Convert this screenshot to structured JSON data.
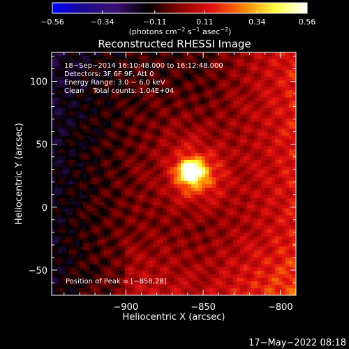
{
  "chart_data": {
    "type": "heatmap",
    "title": "Reconstructed RHESSI Image",
    "xlabel": "Heliocentric X (arcsec)",
    "ylabel": "Heliocentric Y (arcsec)",
    "xlim": [
      -948,
      -790
    ],
    "ylim": [
      -70,
      123
    ],
    "x_ticks": [
      -900,
      -850,
      -800
    ],
    "y_ticks": [
      -50,
      0,
      50,
      100
    ],
    "x_tick_labels": [
      "−900",
      "−850",
      "−800"
    ],
    "y_tick_labels": [
      "−50",
      "0",
      "50",
      "100"
    ],
    "grid": false,
    "colorbar": {
      "position": "top",
      "range": [
        -0.56,
        0.56
      ],
      "ticks": [
        -0.56,
        -0.34,
        -0.11,
        0.11,
        0.34,
        0.56
      ],
      "tick_labels": [
        "−0.56",
        "−0.34",
        "−0.11",
        "0.11",
        "0.34",
        "0.56"
      ],
      "colormap": [
        "#0000ff",
        "#1b0a8c",
        "#3b0f70",
        "#000000",
        "#8a0000",
        "#e01010",
        "#ff8000",
        "#ffff40",
        "#ffffff"
      ],
      "units": {
        "prefix": "(photons cm",
        "exp1": "−2",
        "mid1": " s",
        "exp2": "−1",
        "mid2": " asec",
        "exp3": "−2",
        "suffix": ")"
      }
    },
    "annotations": [
      "18−Sep−2014 16:10:48.000 to 16:12:48.000",
      "Detectors: 3F 6F 9F, Att 0",
      "Energy Range: 3.0 − 6.0 keV",
      "Clean    Total counts: 1.04E+04"
    ],
    "peak_label": "Position of Peak = [−858,28]",
    "peak": {
      "x": -858,
      "y": 28,
      "value": 0.56
    },
    "footer_timestamp": "17−May−2022 08:18"
  }
}
